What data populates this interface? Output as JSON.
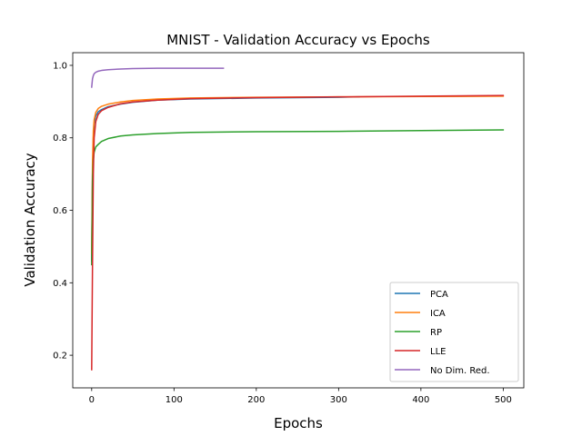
{
  "chart_data": {
    "type": "line",
    "title": "MNIST - Validation Accuracy vs Epochs",
    "xlabel": "Epochs",
    "ylabel": "Validation Accuracy",
    "xlim": [
      -23,
      525
    ],
    "ylim": [
      0.11,
      1.035
    ],
    "xticks": [
      0,
      100,
      200,
      300,
      400,
      500
    ],
    "yticks": [
      0.2,
      0.4,
      0.6,
      0.8,
      1.0
    ],
    "xtick_labels": [
      "0",
      "100",
      "200",
      "300",
      "400",
      "500"
    ],
    "ytick_labels": [
      "0.2",
      "0.4",
      "0.6",
      "0.8",
      "1.0"
    ],
    "grid": false,
    "legend_position": "lower-right",
    "series": [
      {
        "name": "PCA",
        "color": "#1f77b4",
        "x": [
          0,
          1,
          2,
          3,
          5,
          8,
          12,
          20,
          35,
          50,
          80,
          120,
          200,
          300,
          325
        ],
        "y": [
          0.46,
          0.7,
          0.8,
          0.84,
          0.86,
          0.872,
          0.878,
          0.886,
          0.893,
          0.898,
          0.904,
          0.907,
          0.91,
          0.912,
          0.913
        ]
      },
      {
        "name": "ICA",
        "color": "#ff7f0e",
        "x": [
          0,
          1,
          2,
          3,
          5,
          8,
          12,
          20,
          35,
          50,
          80,
          120,
          200,
          300,
          400,
          500
        ],
        "y": [
          0.48,
          0.73,
          0.82,
          0.85,
          0.87,
          0.881,
          0.887,
          0.893,
          0.899,
          0.903,
          0.907,
          0.91,
          0.912,
          0.913,
          0.914,
          0.915
        ]
      },
      {
        "name": "RP",
        "color": "#2ca02c",
        "x": [
          0,
          1,
          2,
          3,
          5,
          8,
          12,
          20,
          35,
          50,
          80,
          120,
          200,
          300,
          400,
          500
        ],
        "y": [
          0.45,
          0.68,
          0.74,
          0.76,
          0.775,
          0.782,
          0.79,
          0.798,
          0.805,
          0.808,
          0.812,
          0.815,
          0.817,
          0.818,
          0.82,
          0.822
        ]
      },
      {
        "name": "LLE",
        "color": "#d62728",
        "x": [
          0,
          1,
          2,
          3,
          5,
          8,
          12,
          20,
          35,
          50,
          80,
          120,
          200,
          300,
          400,
          500
        ],
        "y": [
          0.16,
          0.45,
          0.7,
          0.8,
          0.845,
          0.865,
          0.875,
          0.884,
          0.894,
          0.899,
          0.904,
          0.908,
          0.911,
          0.913,
          0.915,
          0.917
        ]
      },
      {
        "name": "No Dim. Red.",
        "color": "#9467bd",
        "x": [
          0,
          1,
          2,
          3,
          5,
          8,
          12,
          20,
          35,
          50,
          80,
          120,
          160
        ],
        "y": [
          0.94,
          0.963,
          0.972,
          0.977,
          0.981,
          0.984,
          0.986,
          0.988,
          0.99,
          0.991,
          0.992,
          0.992,
          0.992
        ]
      }
    ]
  }
}
